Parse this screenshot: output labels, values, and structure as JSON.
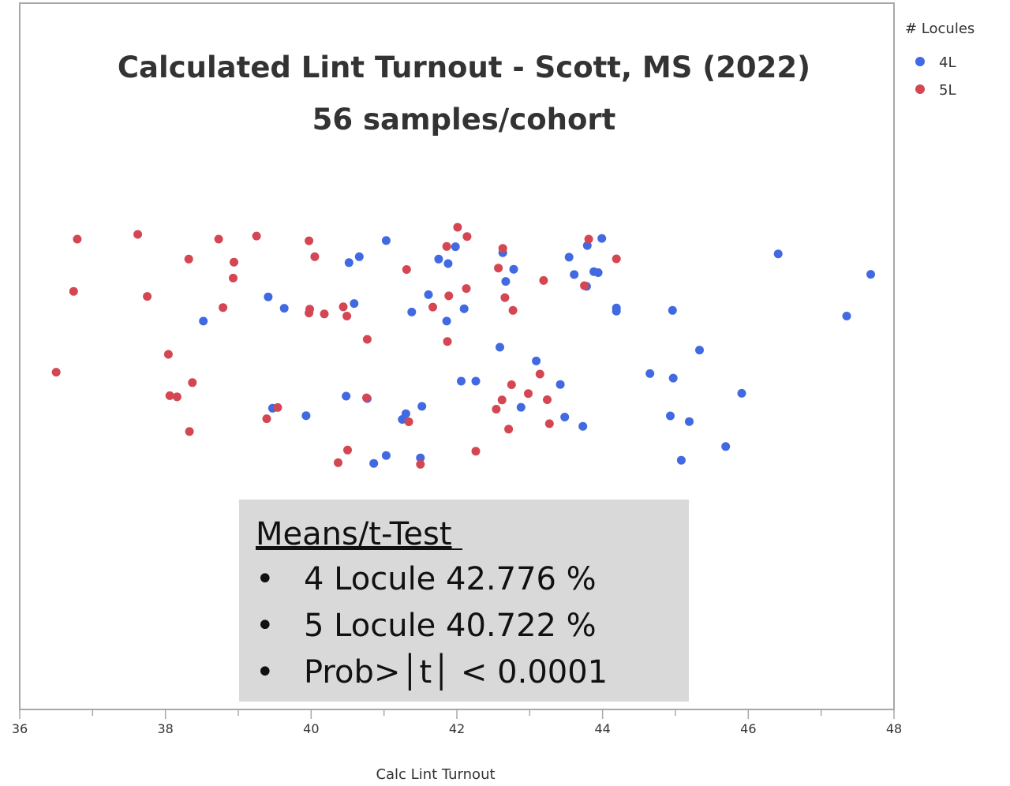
{
  "chart_data": {
    "type": "scatter",
    "title": "Calculated Lint Turnout - Scott, MS (2022)",
    "subtitle": "56 samples/cohort",
    "xlabel": "Calc Lint Turnout",
    "ylabel": "",
    "xlim": [
      36,
      48
    ],
    "ylim": [
      0,
      1
    ],
    "x_ticks": [
      "36",
      "38",
      "40",
      "42",
      "44",
      "46",
      "48"
    ],
    "grid": false,
    "legend": {
      "title": "# Locules",
      "placement": "top-right outside",
      "entries": [
        "4L",
        "5L"
      ]
    },
    "series": [
      {
        "name": "4L",
        "color": "#4169E1",
        "points": [
          [
            38.52,
            0.645
          ],
          [
            39.41,
            0.747
          ],
          [
            39.63,
            0.699
          ],
          [
            39.47,
            0.278
          ],
          [
            39.93,
            0.247
          ],
          [
            40.52,
            0.891
          ],
          [
            40.48,
            0.329
          ],
          [
            40.59,
            0.719
          ],
          [
            40.66,
            0.916
          ],
          [
            40.77,
            0.319
          ],
          [
            40.86,
            0.046
          ],
          [
            41.03,
            0.984
          ],
          [
            41.03,
            0.079
          ],
          [
            41.25,
            0.231
          ],
          [
            41.3,
            0.255
          ],
          [
            41.38,
            0.683
          ],
          [
            41.5,
            0.069
          ],
          [
            41.52,
            0.286
          ],
          [
            41.61,
            0.756
          ],
          [
            41.75,
            0.906
          ],
          [
            41.86,
            0.645
          ],
          [
            41.88,
            0.887
          ],
          [
            41.98,
            0.958
          ],
          [
            42.06,
            0.392
          ],
          [
            42.1,
            0.697
          ],
          [
            42.26,
            0.392
          ],
          [
            42.59,
            0.535
          ],
          [
            42.63,
            0.933
          ],
          [
            42.67,
            0.812
          ],
          [
            42.78,
            0.863
          ],
          [
            42.88,
            0.282
          ],
          [
            43.09,
            0.477
          ],
          [
            43.42,
            0.378
          ],
          [
            43.48,
            0.241
          ],
          [
            43.54,
            0.914
          ],
          [
            43.61,
            0.841
          ],
          [
            43.73,
            0.202
          ],
          [
            43.78,
            0.791
          ],
          [
            43.79,
            0.963
          ],
          [
            43.88,
            0.853
          ],
          [
            43.94,
            0.849
          ],
          [
            43.99,
            0.993
          ],
          [
            44.19,
            0.7
          ],
          [
            44.19,
            0.687
          ],
          [
            44.65,
            0.424
          ],
          [
            44.93,
            0.246
          ],
          [
            44.96,
            0.69
          ],
          [
            44.97,
            0.405
          ],
          [
            45.08,
            0.059
          ],
          [
            45.19,
            0.222
          ],
          [
            45.33,
            0.523
          ],
          [
            45.69,
            0.117
          ],
          [
            45.91,
            0.341
          ],
          [
            46.41,
            0.928
          ],
          [
            47.35,
            0.666
          ],
          [
            47.68,
            0.842
          ]
        ]
      },
      {
        "name": "5L",
        "color": "#D44652",
        "points": [
          [
            36.5,
            0.43
          ],
          [
            36.74,
            0.77
          ],
          [
            36.79,
            0.99
          ],
          [
            37.62,
            1.01
          ],
          [
            37.75,
            0.749
          ],
          [
            38.04,
            0.505
          ],
          [
            38.06,
            0.331
          ],
          [
            38.16,
            0.326
          ],
          [
            38.32,
            0.906
          ],
          [
            38.33,
            0.18
          ],
          [
            38.37,
            0.386
          ],
          [
            38.73,
            0.99
          ],
          [
            38.79,
            0.702
          ],
          [
            38.93,
            0.826
          ],
          [
            38.94,
            0.893
          ],
          [
            39.25,
            1.003
          ],
          [
            39.39,
            0.234
          ],
          [
            39.54,
            0.281
          ],
          [
            39.97,
            0.983
          ],
          [
            39.97,
            0.679
          ],
          [
            39.98,
            0.695
          ],
          [
            40.05,
            0.916
          ],
          [
            40.18,
            0.675
          ],
          [
            40.37,
            0.049
          ],
          [
            40.44,
            0.705
          ],
          [
            40.49,
            0.666
          ],
          [
            40.5,
            0.102
          ],
          [
            40.76,
            0.322
          ],
          [
            40.77,
            0.568
          ],
          [
            41.31,
            0.862
          ],
          [
            41.34,
            0.221
          ],
          [
            41.5,
            0.042
          ],
          [
            41.67,
            0.704
          ],
          [
            41.86,
            0.959
          ],
          [
            41.87,
            0.559
          ],
          [
            41.89,
            0.751
          ],
          [
            42.01,
            1.04
          ],
          [
            42.13,
            0.782
          ],
          [
            42.14,
            1.001
          ],
          [
            42.26,
            0.097
          ],
          [
            42.54,
            0.274
          ],
          [
            42.57,
            0.868
          ],
          [
            42.62,
            0.313
          ],
          [
            42.63,
            0.951
          ],
          [
            42.66,
            0.744
          ],
          [
            42.71,
            0.19
          ],
          [
            42.75,
            0.377
          ],
          [
            42.77,
            0.69
          ],
          [
            42.98,
            0.34
          ],
          [
            43.14,
            0.422
          ],
          [
            43.19,
            0.816
          ],
          [
            43.24,
            0.314
          ],
          [
            43.27,
            0.213
          ],
          [
            43.75,
            0.794
          ],
          [
            43.81,
            0.99
          ],
          [
            44.19,
            0.907
          ]
        ]
      }
    ],
    "annotations": {
      "heading": "Means/t-Test",
      "bullet": "•",
      "items": [
        "4 Locule 42.776 %",
        "5 Locule 40.722 %",
        "Prob>│t│ < 0.0001"
      ]
    }
  }
}
